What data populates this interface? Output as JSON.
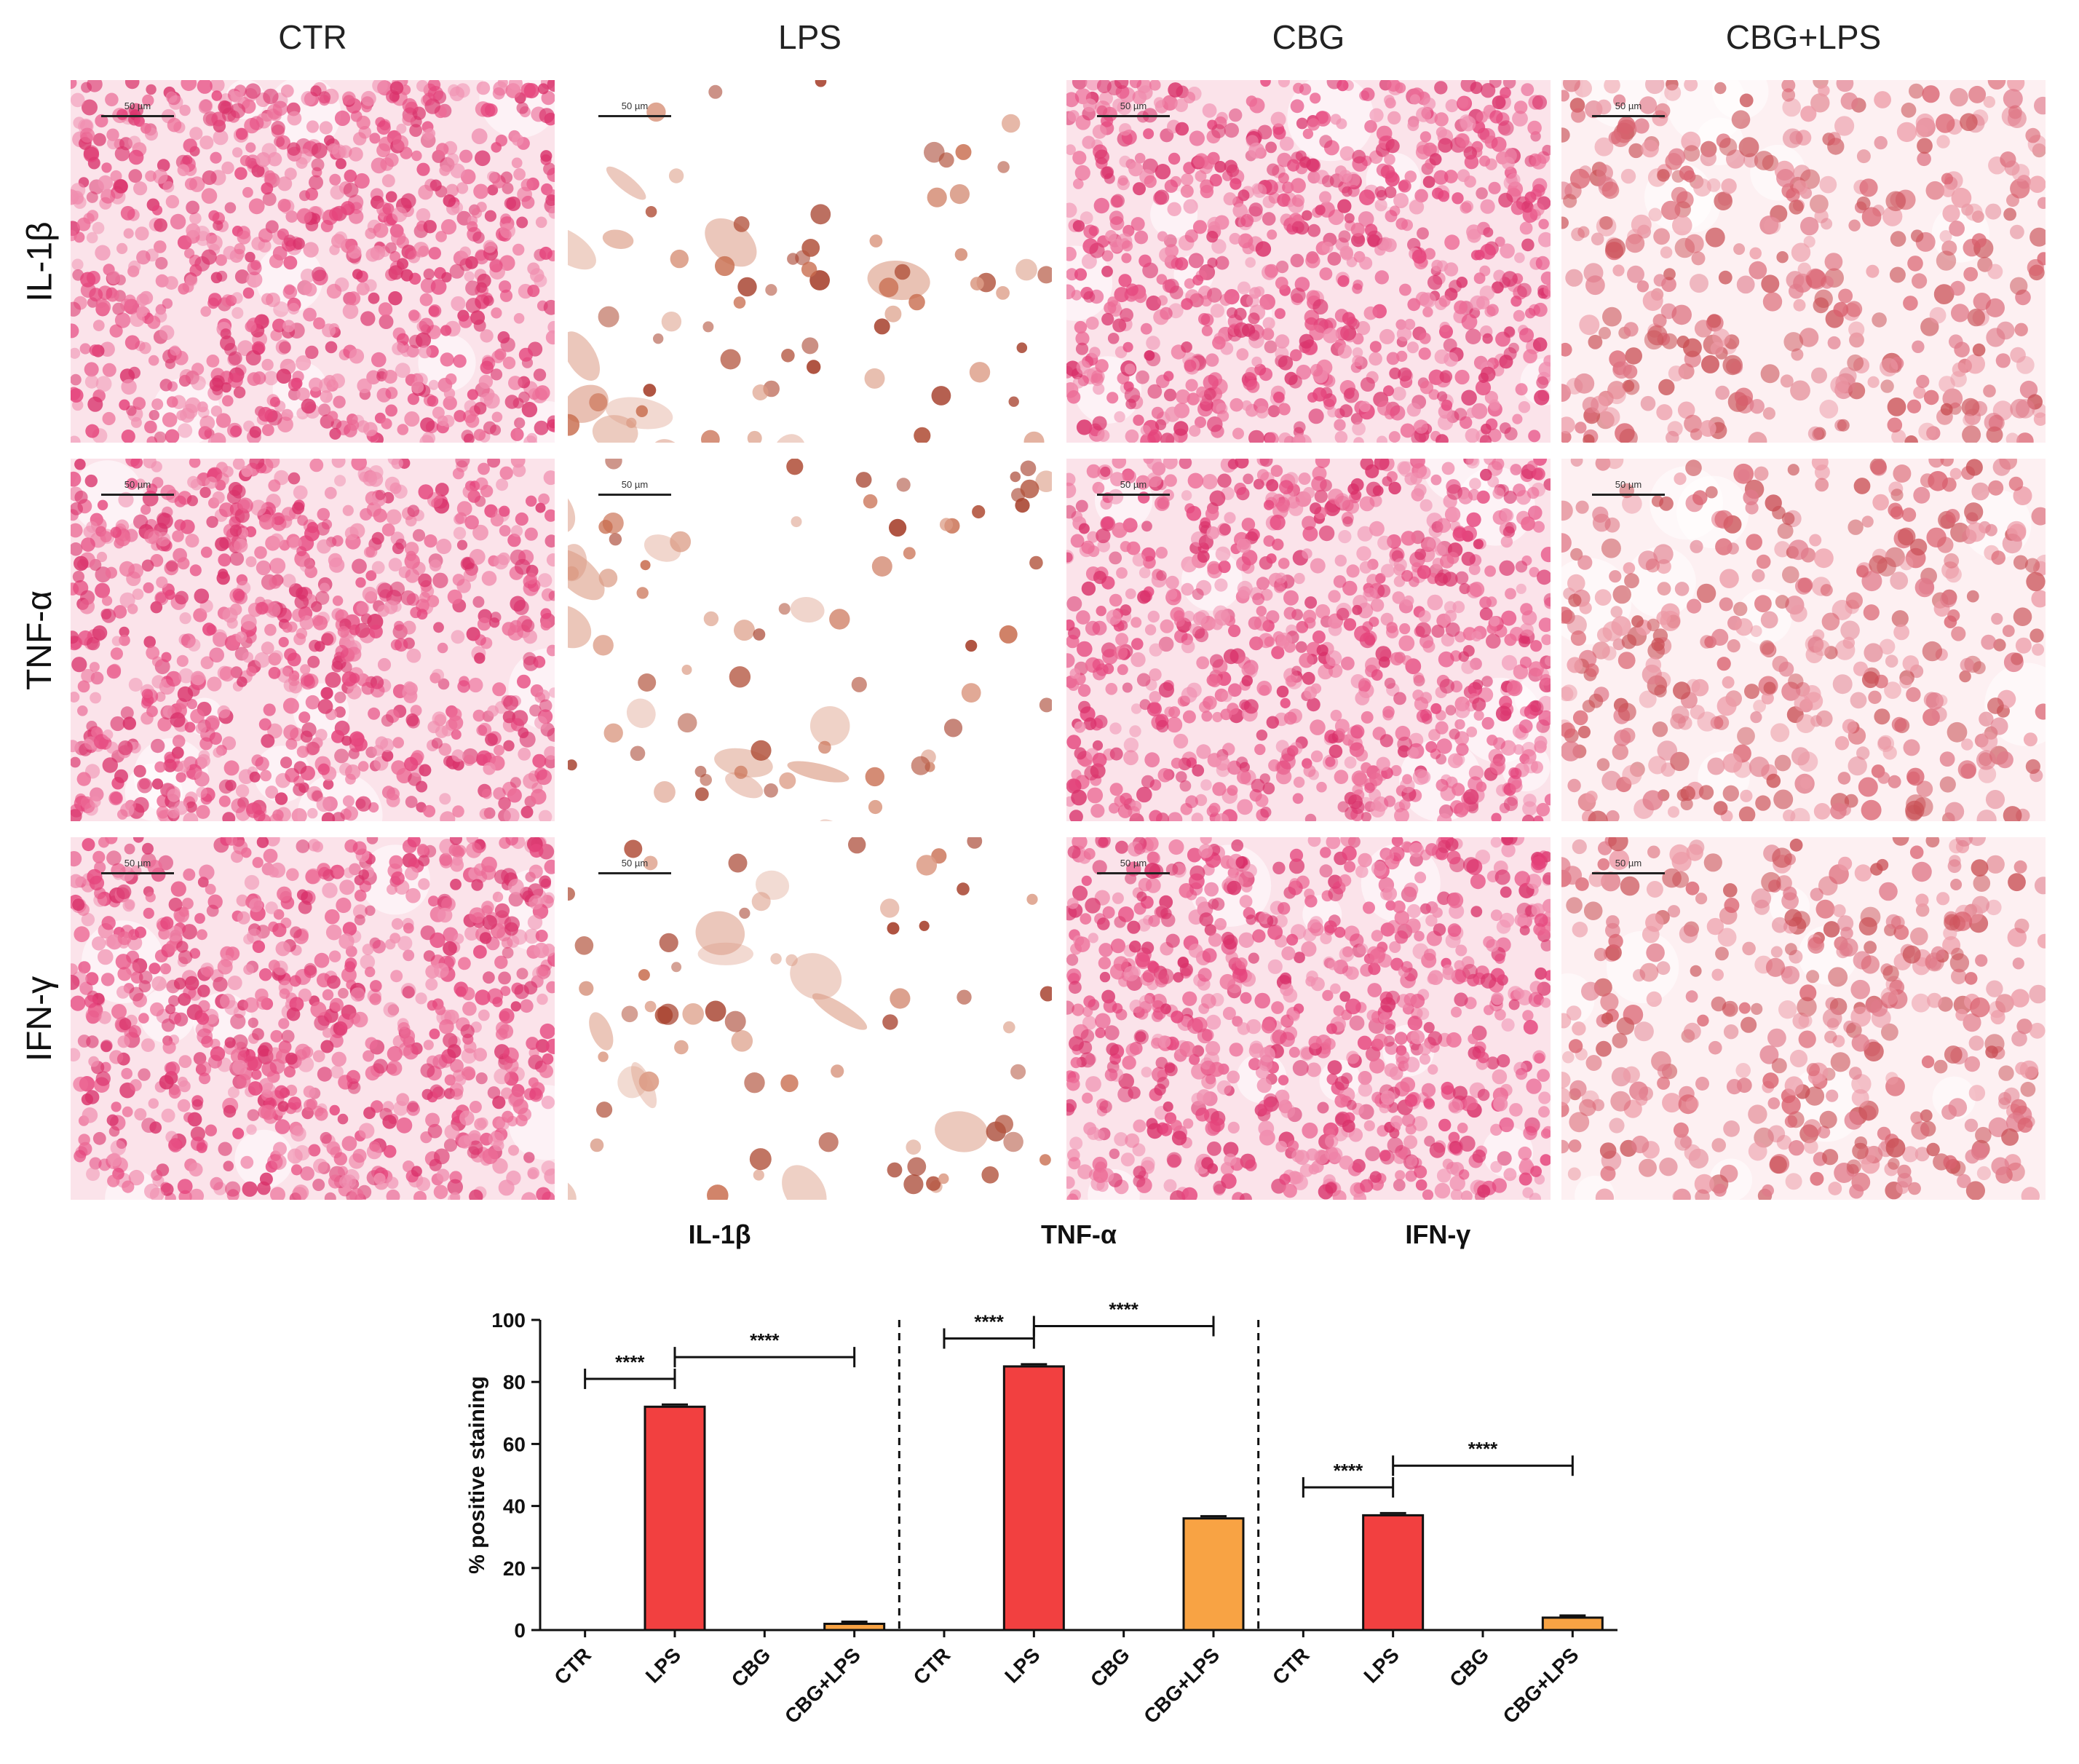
{
  "columns": [
    "CTR",
    "LPS",
    "CBG",
    "CBG+LPS"
  ],
  "rows": [
    "IL-1β",
    "TNF-α",
    "IFN-γ"
  ],
  "scalebar_label": "50 µm",
  "stain_colors": {
    "nuclear_fast_red": "#e5447c",
    "positive_brown": "#b2523c",
    "light_brown": "#dc9c86",
    "pale_pink": "#f3c3cf"
  },
  "chart_data": {
    "type": "bar",
    "groups": [
      "IL-1β",
      "TNF-α",
      "IFN-γ"
    ],
    "categories": [
      "CTR",
      "LPS",
      "CBG",
      "CBG+LPS"
    ],
    "series": [
      {
        "group": "IL-1β",
        "values": [
          0,
          72,
          0,
          2
        ]
      },
      {
        "group": "TNF-α",
        "values": [
          0,
          85,
          0,
          36
        ]
      },
      {
        "group": "IFN-γ",
        "values": [
          0,
          37,
          0,
          4
        ]
      }
    ],
    "colors": {
      "LPS": "#f24040",
      "CBG+LPS": "#f8a344"
    },
    "ylabel": "% positive staining",
    "ylim": [
      0,
      100
    ],
    "yticks": [
      0,
      20,
      40,
      60,
      80,
      100
    ],
    "significance_label": "****",
    "comparisons": [
      {
        "group": "IL-1β",
        "from": "CTR",
        "to": "LPS",
        "label": "****"
      },
      {
        "group": "IL-1β",
        "from": "LPS",
        "to": "CBG+LPS",
        "label": "****"
      },
      {
        "group": "TNF-α",
        "from": "CTR",
        "to": "LPS",
        "label": "****"
      },
      {
        "group": "TNF-α",
        "from": "LPS",
        "to": "CBG+LPS",
        "label": "****"
      },
      {
        "group": "IFN-γ",
        "from": "CTR",
        "to": "LPS",
        "label": "****"
      },
      {
        "group": "IFN-γ",
        "from": "LPS",
        "to": "CBG+LPS",
        "label": "****"
      }
    ],
    "grid": false,
    "group_separator": "dashed"
  }
}
